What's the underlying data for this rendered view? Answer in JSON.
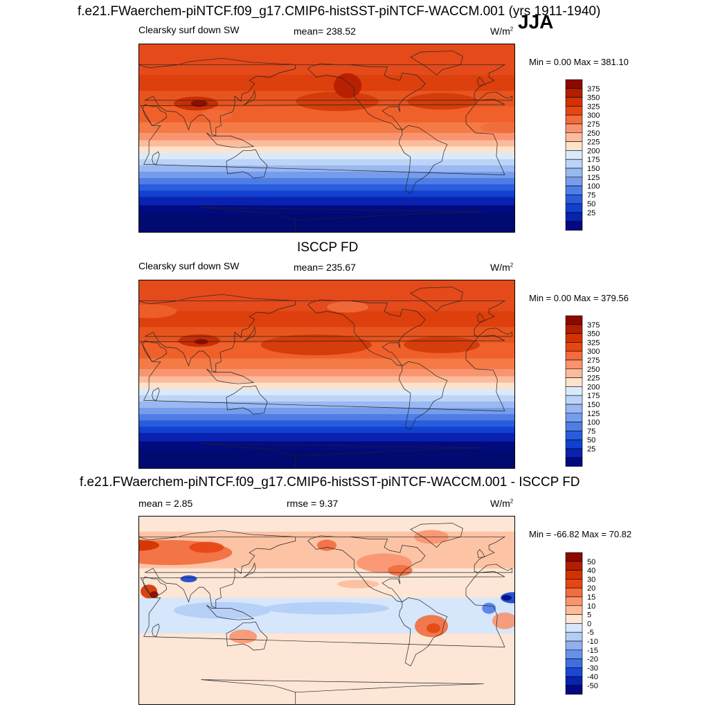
{
  "season": "JJA",
  "panels": [
    {
      "title": "f.e21.FWaerchem-piNTCF.f09_g17.CMIP6-histSST-piNTCF-WACCM.001 (yrs 1911-1940)",
      "left_label": "Clearsky surf down SW",
      "center_label": "mean= 238.52",
      "units": "W/m",
      "units_sup": "2",
      "minmax": "Min =   0.00 Max = 381.10",
      "colorbar": {
        "ticks": [
          "375",
          "350",
          "325",
          "300",
          "275",
          "250",
          "225",
          "200",
          "175",
          "150",
          "125",
          "100",
          "75",
          "50",
          "25"
        ],
        "colors": [
          "#8b0a00",
          "#b31e00",
          "#d23200",
          "#e64612",
          "#f26c3c",
          "#f99470",
          "#fcbc9c",
          "#fde2cc",
          "#dbeafb",
          "#bcd4f7",
          "#9ab8f2",
          "#769cec",
          "#4f7de6",
          "#2a5ddc",
          "#1240d0",
          "#0a22b0",
          "#020a80"
        ]
      }
    },
    {
      "title": "ISCCP FD",
      "left_label": "Clearsky surf down SW",
      "center_label": "mean= 235.67",
      "units": "W/m",
      "units_sup": "2",
      "minmax": "Min =   0.00 Max = 379.56",
      "colorbar": {
        "ticks": [
          "375",
          "350",
          "325",
          "300",
          "275",
          "250",
          "225",
          "200",
          "175",
          "150",
          "125",
          "100",
          "75",
          "50",
          "25"
        ],
        "colors": [
          "#8b0a00",
          "#b31e00",
          "#d23200",
          "#e64612",
          "#f26c3c",
          "#f99470",
          "#fcbc9c",
          "#fde2cc",
          "#dbeafb",
          "#bcd4f7",
          "#9ab8f2",
          "#769cec",
          "#4f7de6",
          "#2a5ddc",
          "#1240d0",
          "#0a22b0",
          "#020a80"
        ]
      }
    },
    {
      "title": "f.e21.FWaerchem-piNTCF.f09_g17.CMIP6-histSST-piNTCF-WACCM.001 - ISCCP FD",
      "left_label": "mean =   2.85",
      "center_label": "rmse =   9.37",
      "units": "W/m",
      "units_sup": "2",
      "minmax": "Min = -66.82 Max =  70.82",
      "colorbar": {
        "ticks": [
          "50",
          "40",
          "30",
          "20",
          "15",
          "10",
          "5",
          "0",
          "-5",
          "-10",
          "-15",
          "-20",
          "-30",
          "-40",
          "-50"
        ],
        "colors": [
          "#8b0a00",
          "#b31e00",
          "#d23200",
          "#e64612",
          "#f26c3c",
          "#f99470",
          "#fcbc9c",
          "#fde6d6",
          "#d6e6fb",
          "#b4cdf6",
          "#8eaff0",
          "#6690ea",
          "#3d6ee2",
          "#1a48d4",
          "#0a22b0",
          "#020a80"
        ]
      }
    }
  ],
  "field_colors": {
    "abs_bands": [
      "#e44a1a",
      "#dd3f0d",
      "#e8541e",
      "#f0602a",
      "#f47a46",
      "#f99470",
      "#fcbc9c",
      "#fde2cc",
      "#dbeafb",
      "#bcd4f7",
      "#9ab8f2",
      "#769cec",
      "#4f7de6",
      "#2a5ddc",
      "#1240d0",
      "#0a22b0",
      "#020a80",
      "#000a70"
    ],
    "land_outline": "#222222",
    "diff_background": "#fde6d6"
  }
}
